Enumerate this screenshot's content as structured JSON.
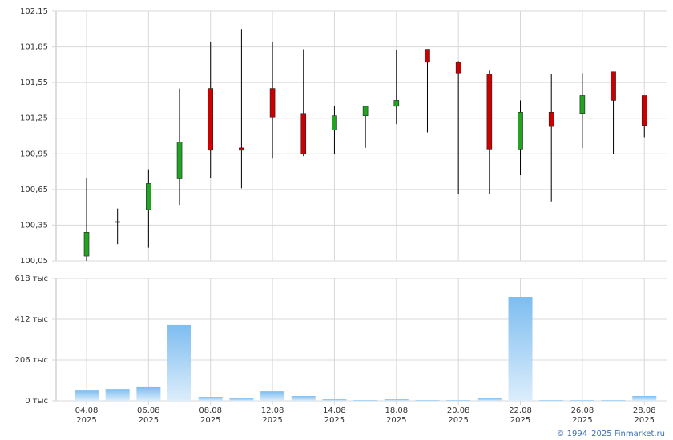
{
  "chart_data": {
    "type": "candlestick",
    "categories": [
      "04.08 2025",
      null,
      "06.08 2025",
      null,
      "08.08 2025",
      null,
      "12.08 2025",
      null,
      "14.08 2025",
      null,
      "18.08 2025",
      null,
      "20.08 2025",
      null,
      "22.08 2025",
      null,
      "26.08 2025",
      null,
      "28.08 2025"
    ],
    "open": [
      100.09,
      100.38,
      100.48,
      100.74,
      101.5,
      101.0,
      101.5,
      101.29,
      101.15,
      101.27,
      101.35,
      101.83,
      101.72,
      101.62,
      100.99,
      101.3,
      101.29,
      101.64,
      101.44
    ],
    "high": [
      100.75,
      100.49,
      100.82,
      101.5,
      101.89,
      102.0,
      101.89,
      101.83,
      101.35,
      101.35,
      101.82,
      101.83,
      101.73,
      101.65,
      101.4,
      101.62,
      101.63,
      101.64,
      101.44
    ],
    "low": [
      100.05,
      100.19,
      100.16,
      100.52,
      100.75,
      100.66,
      100.91,
      100.93,
      100.95,
      101.0,
      101.2,
      101.13,
      100.61,
      100.61,
      100.77,
      100.55,
      101.0,
      100.95,
      101.09
    ],
    "close": [
      100.29,
      100.38,
      100.7,
      101.05,
      100.98,
      100.98,
      101.26,
      100.95,
      101.27,
      101.35,
      101.4,
      101.72,
      101.63,
      100.99,
      101.3,
      101.18,
      101.44,
      101.4,
      101.19
    ],
    "up_color": "#22a322",
    "down_color": "#cc0000",
    "ylim": [
      100.05,
      102.15
    ],
    "yticks": [
      {
        "value": 100.05,
        "label": "100,05"
      },
      {
        "value": 100.35,
        "label": "100,35"
      },
      {
        "value": 100.65,
        "label": "100,65"
      },
      {
        "value": 100.95,
        "label": "100,95"
      },
      {
        "value": 101.25,
        "label": "101,25"
      },
      {
        "value": 101.55,
        "label": "101,55"
      },
      {
        "value": 101.85,
        "label": "101,85"
      },
      {
        "value": 102.15,
        "label": "102,15"
      }
    ],
    "volume": [
      52,
      60,
      69,
      384,
      20,
      12,
      48,
      24,
      8,
      4,
      8,
      4,
      4,
      12,
      525,
      4,
      4,
      4,
      24
    ],
    "volume_color": "#7dbdf0",
    "volume_ylim": [
      0,
      618
    ],
    "volume_yticks": [
      {
        "value": 0,
        "label": "0 тыс"
      },
      {
        "value": 206,
        "label": "206 тыс"
      },
      {
        "value": 412,
        "label": "412 тыс"
      },
      {
        "value": 618,
        "label": "618 тыс"
      }
    ],
    "grid": true,
    "credit": "© 1994–2025 Finmarket.ru"
  }
}
